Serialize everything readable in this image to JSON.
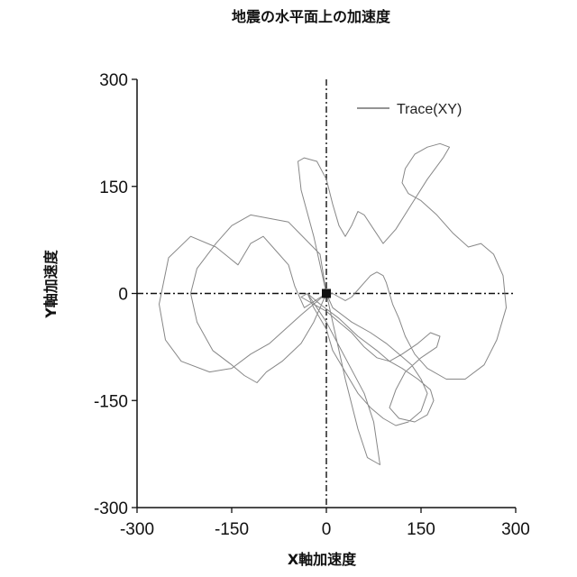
{
  "chart_data": {
    "type": "line",
    "title": "地震の水平面上の加速度",
    "xlabel": "X軸加速度",
    "ylabel": "Y軸加速度",
    "xlim": [
      -300,
      300
    ],
    "ylim": [
      -300,
      300
    ],
    "xticks": [
      "-300",
      "-150",
      "0",
      "150",
      "300"
    ],
    "yticks": [
      "300",
      "150",
      "0",
      "-150",
      "-300"
    ],
    "grid": false,
    "legend_position": "top-right",
    "origin_crosshair": true,
    "series": [
      {
        "name": "Trace(XY)",
        "color": "#7a7a7a",
        "x": [
          0,
          -40,
          -90,
          -120,
          -150,
          -185,
          -230,
          -255,
          -265,
          -250,
          -215,
          -175,
          -140,
          -120,
          -100,
          -80,
          -60,
          -50,
          -40,
          -35,
          0,
          -10,
          -60,
          -120,
          -150,
          -175,
          -205,
          -215,
          -205,
          -180,
          -150,
          -130,
          -110,
          -95,
          -70,
          -40,
          -20,
          0,
          -20,
          -40,
          -45,
          -35,
          -15,
          0,
          10,
          20,
          30,
          40,
          50,
          60,
          75,
          90,
          110,
          135,
          160,
          185,
          195,
          180,
          160,
          140,
          125,
          120,
          130,
          150,
          175,
          200,
          225,
          245,
          265,
          280,
          285,
          270,
          250,
          220,
          190,
          160,
          140,
          125,
          115,
          105,
          100,
          95,
          90,
          80,
          70,
          60,
          50,
          40,
          30,
          20,
          10,
          0,
          10,
          40,
          70,
          95,
          115,
          135,
          150,
          160,
          150,
          130,
          110,
          90,
          70,
          50,
          30,
          10,
          0,
          -20,
          -30,
          -10,
          20,
          50,
          80,
          100,
          120,
          145,
          165,
          170,
          160,
          140,
          115,
          100,
          110,
          125,
          150,
          175,
          180,
          165,
          145,
          120,
          100,
          80,
          60,
          40,
          20,
          0,
          -20,
          -40,
          -30,
          0,
          30,
          60,
          75,
          80,
          85,
          65,
          50,
          30,
          0
        ],
        "y": [
          0,
          -30,
          -70,
          -85,
          -105,
          -110,
          -95,
          -65,
          -15,
          50,
          80,
          65,
          40,
          70,
          80,
          60,
          40,
          10,
          -10,
          -20,
          0,
          55,
          100,
          110,
          95,
          70,
          35,
          0,
          -40,
          -80,
          -100,
          -115,
          -125,
          -110,
          -95,
          -70,
          -40,
          0,
          80,
          145,
          185,
          190,
          185,
          160,
          125,
          95,
          80,
          95,
          115,
          110,
          90,
          70,
          90,
          125,
          160,
          190,
          205,
          210,
          205,
          195,
          175,
          155,
          140,
          130,
          110,
          85,
          65,
          70,
          55,
          25,
          -20,
          -65,
          -100,
          -120,
          -120,
          -105,
          -85,
          -60,
          -35,
          -15,
          0,
          15,
          25,
          30,
          25,
          15,
          5,
          -5,
          -10,
          -5,
          0,
          0,
          -20,
          -40,
          -55,
          -70,
          -85,
          -100,
          -120,
          -140,
          -165,
          -180,
          -185,
          -175,
          -160,
          -140,
          -110,
          -80,
          -50,
          -20,
          0,
          -15,
          -35,
          -60,
          -80,
          -95,
          -105,
          -120,
          -135,
          -150,
          -170,
          -180,
          -175,
          -160,
          -135,
          -110,
          -90,
          -75,
          -60,
          -55,
          -70,
          -85,
          -95,
          -90,
          -75,
          -55,
          -40,
          -25,
          -15,
          -5,
          0,
          -40,
          -90,
          -140,
          -180,
          -210,
          -240,
          -230,
          -190,
          -120,
          0
        ]
      }
    ]
  }
}
